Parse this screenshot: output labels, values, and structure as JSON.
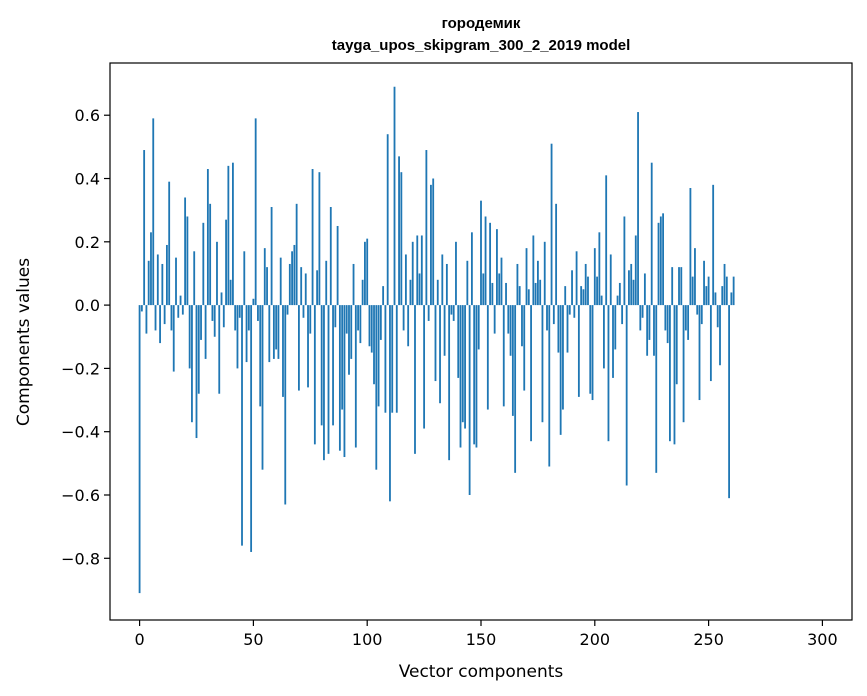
{
  "chart_data": {
    "type": "bar",
    "title": "городемик",
    "subtitle": "tayga_upos_skipgram_300_2_2019 model",
    "xlabel": "Vector components",
    "ylabel": "Components values",
    "xlim": [
      -13,
      313
    ],
    "ylim": [
      -0.995,
      0.765
    ],
    "xticks": [
      0,
      50,
      100,
      150,
      200,
      250,
      300
    ],
    "yticks": [
      -0.8,
      -0.6,
      -0.4,
      -0.2,
      0.0,
      0.2,
      0.4,
      0.6
    ],
    "ytick_labels": [
      "−0.8",
      "−0.6",
      "−0.4",
      "−0.2",
      "0.0",
      "0.2",
      "0.4",
      "0.6"
    ],
    "bar_color": "#1f77b4",
    "grid": false,
    "values": [
      -0.91,
      -0.02,
      0.49,
      -0.09,
      0.14,
      0.23,
      0.59,
      -0.08,
      0.16,
      -0.12,
      0.13,
      -0.06,
      0.19,
      0.39,
      -0.08,
      -0.21,
      0.15,
      -0.04,
      0.03,
      -0.03,
      0.34,
      0.28,
      -0.2,
      -0.37,
      0.17,
      -0.42,
      -0.28,
      -0.11,
      0.26,
      -0.17,
      0.43,
      0.32,
      -0.05,
      -0.1,
      0.2,
      -0.28,
      0.04,
      -0.07,
      0.27,
      0.44,
      0.08,
      0.45,
      -0.08,
      -0.2,
      -0.04,
      -0.76,
      0.17,
      -0.18,
      -0.08,
      -0.78,
      0.02,
      0.59,
      -0.05,
      -0.32,
      -0.52,
      0.18,
      0.12,
      -0.18,
      0.31,
      -0.17,
      -0.14,
      -0.17,
      0.15,
      -0.29,
      -0.63,
      -0.03,
      0.13,
      0.17,
      0.19,
      0.32,
      -0.27,
      0.12,
      -0.04,
      0.1,
      -0.26,
      -0.09,
      0.43,
      -0.44,
      0.11,
      0.42,
      -0.38,
      -0.49,
      0.14,
      -0.47,
      0.31,
      -0.38,
      -0.07,
      0.25,
      -0.46,
      -0.33,
      -0.48,
      -0.09,
      -0.22,
      -0.17,
      0.13,
      -0.45,
      -0.08,
      -0.12,
      0.08,
      0.2,
      0.21,
      -0.13,
      -0.15,
      -0.25,
      -0.52,
      -0.32,
      -0.11,
      0.06,
      -0.34,
      0.54,
      -0.62,
      -0.34,
      0.69,
      -0.34,
      0.47,
      0.42,
      -0.08,
      0.16,
      -0.13,
      0.08,
      0.2,
      -0.47,
      0.22,
      0.1,
      0.22,
      -0.39,
      0.49,
      -0.05,
      0.38,
      0.4,
      -0.24,
      0.08,
      -0.31,
      0.16,
      -0.16,
      0.13,
      -0.49,
      -0.03,
      -0.05,
      0.2,
      -0.23,
      -0.45,
      -0.37,
      -0.39,
      0.14,
      -0.6,
      0.23,
      -0.44,
      -0.45,
      -0.14,
      0.33,
      0.1,
      0.28,
      -0.33,
      0.26,
      0.07,
      -0.09,
      0.24,
      0.1,
      0.15,
      -0.32,
      0.07,
      -0.09,
      -0.16,
      -0.35,
      -0.53,
      0.13,
      0.06,
      -0.13,
      -0.27,
      0.18,
      0.05,
      -0.43,
      0.22,
      0.07,
      0.14,
      0.08,
      -0.37,
      0.2,
      -0.08,
      -0.51,
      0.51,
      -0.06,
      0.32,
      -0.15,
      -0.41,
      -0.33,
      0.06,
      -0.15,
      -0.03,
      0.11,
      -0.04,
      0.17,
      -0.29,
      0.06,
      0.05,
      0.13,
      0.09,
      -0.28,
      -0.3,
      0.18,
      0.09,
      0.23,
      0.03,
      -0.2,
      0.41,
      -0.43,
      0.16,
      -0.23,
      -0.14,
      0.03,
      0.07,
      -0.06,
      0.28,
      -0.57,
      0.11,
      0.13,
      0.08,
      0.22,
      0.61,
      -0.08,
      -0.04,
      0.1,
      -0.16,
      -0.11,
      0.45,
      -0.16,
      -0.53,
      0.26,
      0.28,
      0.29,
      -0.08,
      -0.12,
      -0.43,
      0.12,
      -0.44,
      -0.25,
      0.12,
      0.12,
      -0.37,
      -0.08,
      -0.11,
      0.37,
      0.09,
      0.18,
      -0.03,
      -0.3,
      -0.06,
      0.14,
      0.06,
      0.09,
      -0.24,
      0.38,
      0.04,
      -0.07,
      -0.19,
      0.06,
      0.13,
      0.09,
      -0.61,
      0.04,
      0.09
    ]
  }
}
